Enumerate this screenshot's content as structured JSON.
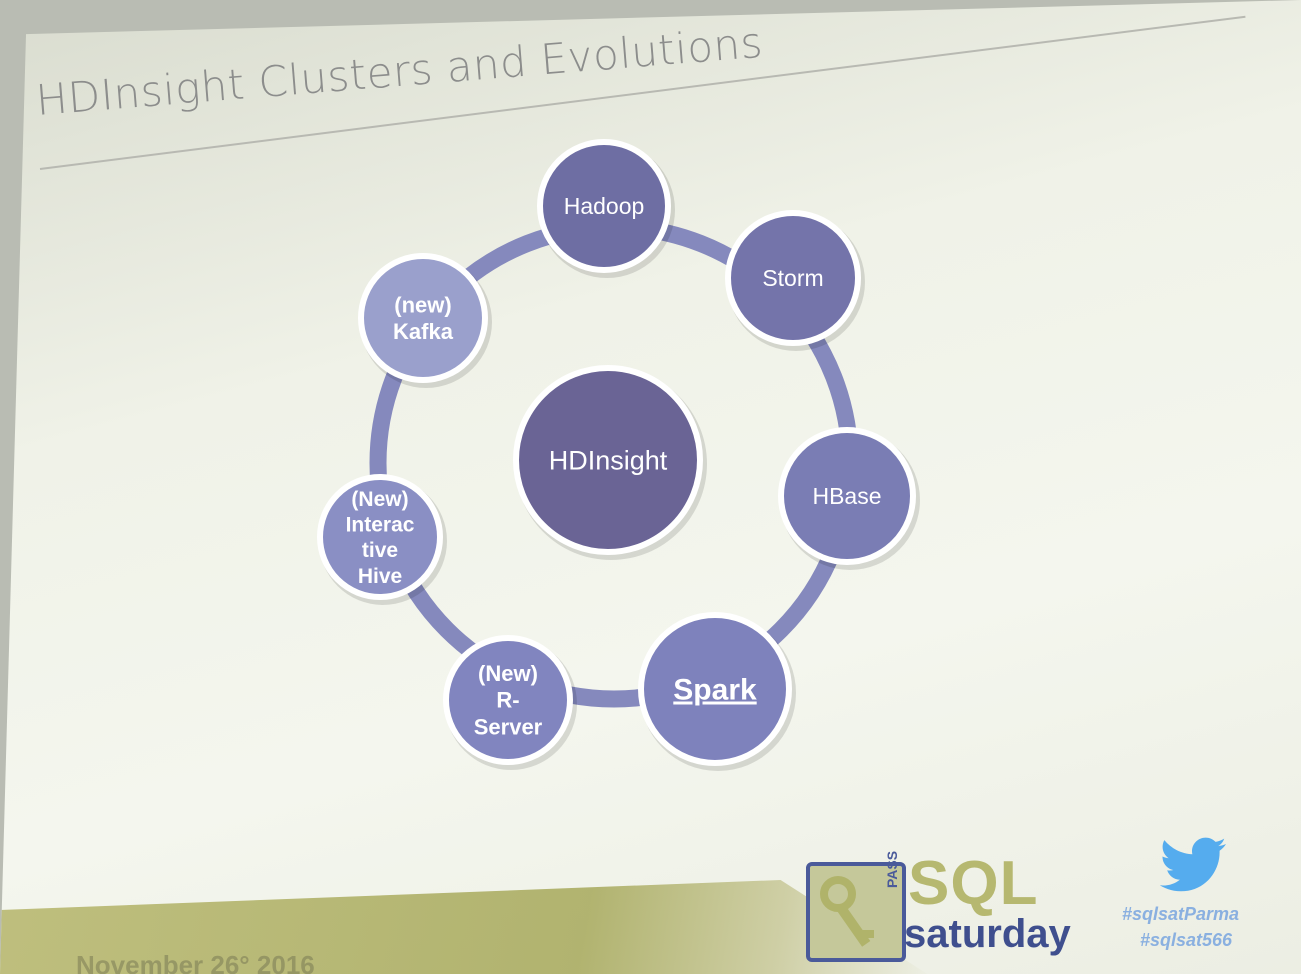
{
  "slide": {
    "title": "HDInsight Clusters and Evolutions",
    "footer_date": "November 26° 2016"
  },
  "diagram": {
    "center": {
      "label": "HDInsight",
      "color": "#6a6495"
    },
    "nodes": [
      {
        "lines": [
          "Hadoop"
        ],
        "color": "#6e6ea3"
      },
      {
        "lines": [
          "Storm"
        ],
        "color": "#7474aa"
      },
      {
        "lines": [
          "HBase"
        ],
        "color": "#7a7db4"
      },
      {
        "lines": [
          "Spark"
        ],
        "color": "#7e82bc",
        "underline": true
      },
      {
        "lines": [
          "(New)",
          "R-",
          "Server"
        ],
        "color": "#8185bf"
      },
      {
        "lines": [
          "(New)",
          "Interac",
          "tive",
          "Hive"
        ],
        "color": "#8a8fc4"
      },
      {
        "lines": [
          "(new)",
          "Kafka"
        ],
        "color": "#9aa0cc"
      }
    ],
    "ring_color": "#8589bd"
  },
  "branding": {
    "logo_pass": "PASS",
    "logo_sql": "SQL",
    "logo_saturday": "saturday",
    "hashtag_1": "#sqlsatParma",
    "hashtag_2": "#sqlsat566",
    "twitter_icon": "twitter-bird-icon"
  }
}
